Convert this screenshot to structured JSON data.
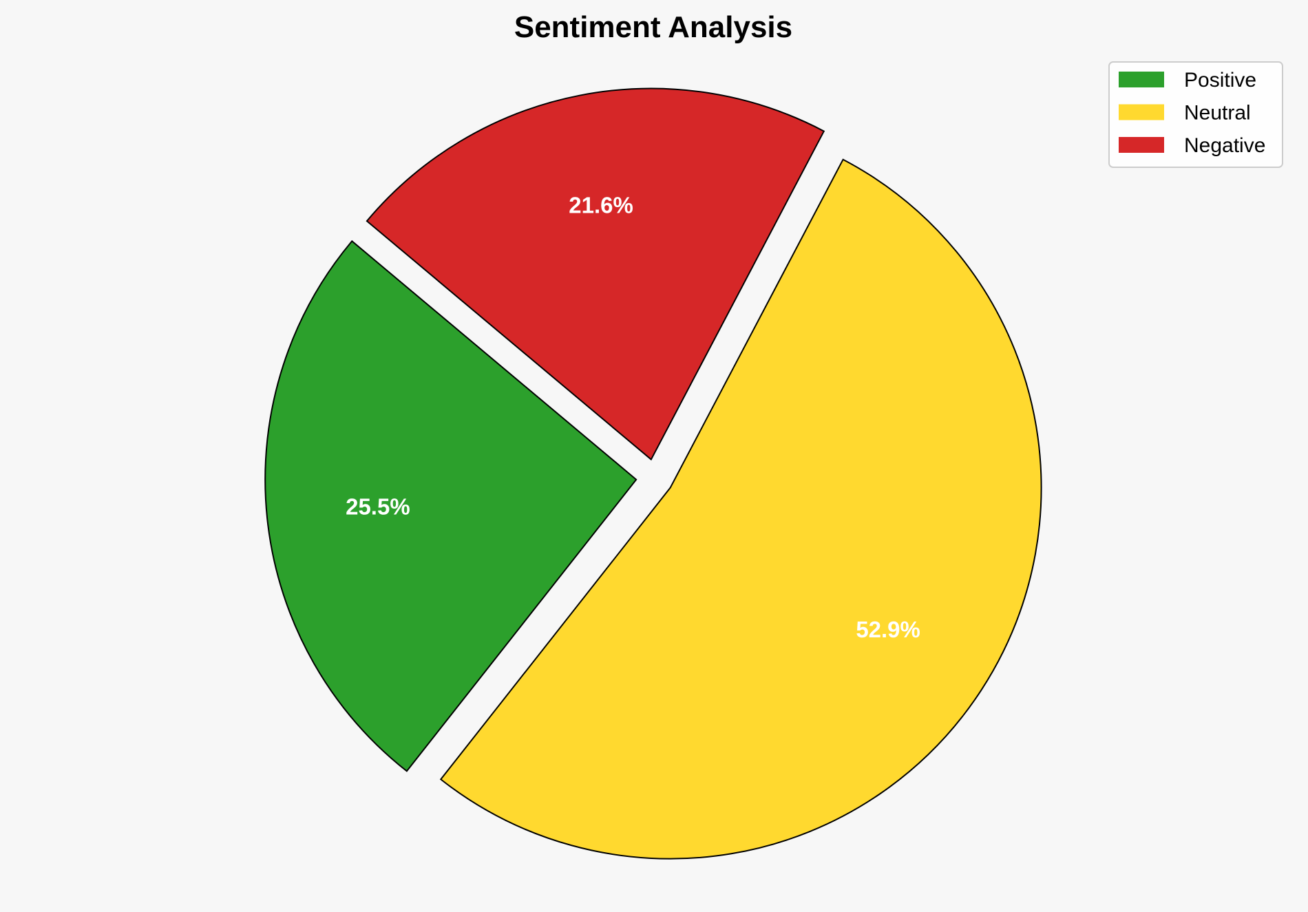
{
  "chart_data": {
    "type": "pie",
    "title": "Sentiment Analysis",
    "categories": [
      "Positive",
      "Neutral",
      "Negative"
    ],
    "values": [
      25.5,
      52.9,
      21.6
    ],
    "labels": [
      "25.5%",
      "52.9%",
      "21.6%"
    ],
    "colors": [
      "#2ca02c",
      "#ffd92f",
      "#d62728"
    ],
    "start_angle": 140,
    "explode": [
      0.05,
      0.05,
      0.05
    ],
    "edge_color": "#000000",
    "legend_placement": "top-right",
    "background": "#f7f7f7"
  }
}
